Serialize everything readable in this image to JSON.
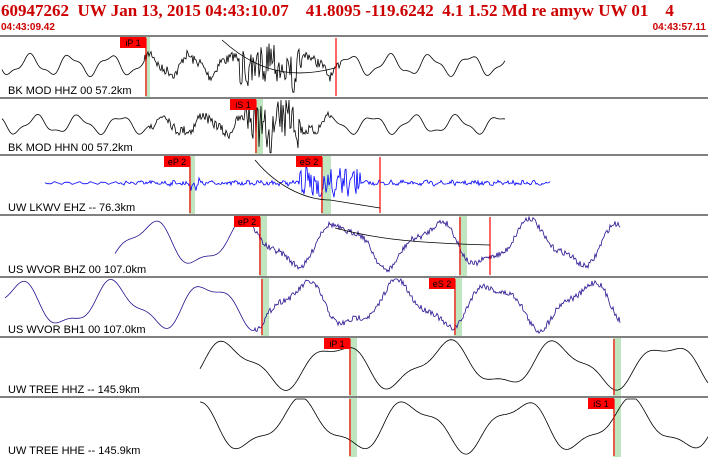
{
  "header": {
    "title": "60947262  UW Jan 13, 2015 04:43:10.07    41.8095 -119.6242  4.1 1.52 Md re amyw UW 01    4",
    "time_start": "04:43:09.42",
    "time_end": "04:43:57.11"
  },
  "colors": {
    "title": "#cc0000",
    "trace_black": "#000000",
    "trace_blue": "#0000ff",
    "trace_purple": "#2a1090",
    "pick_red": "#ff0000",
    "window_green": "#bfe6bf"
  },
  "channels": [
    {
      "label": "BK MOD HHZ 00 57.2km",
      "color": "trace_black",
      "picks": [
        {
          "label": "iP 1"
        }
      ]
    },
    {
      "label": "BK MOD HHN 00 57.2km",
      "color": "trace_black",
      "picks": [
        {
          "label": "iS 1"
        }
      ]
    },
    {
      "label": "UW LKWV EHZ -- 76.3km",
      "color": "trace_blue",
      "picks": [
        {
          "label": "eP 2"
        },
        {
          "label": "eS 2"
        }
      ]
    },
    {
      "label": "US WVOR BHZ 00 107.0km",
      "color": "trace_purple",
      "picks": [
        {
          "label": "eP 2"
        }
      ]
    },
    {
      "label": "US WVOR BH1 00 107.0km",
      "color": "trace_purple",
      "picks": [
        {
          "label": "eS 2"
        }
      ]
    },
    {
      "label": "UW TREE HHZ -- 145.9km",
      "color": "trace_black",
      "picks": [
        {
          "label": "iP 1"
        }
      ]
    },
    {
      "label": "UW TREE HHE -- 145.9km",
      "color": "trace_black",
      "picks": [
        {
          "label": "iS 1"
        }
      ]
    }
  ]
}
